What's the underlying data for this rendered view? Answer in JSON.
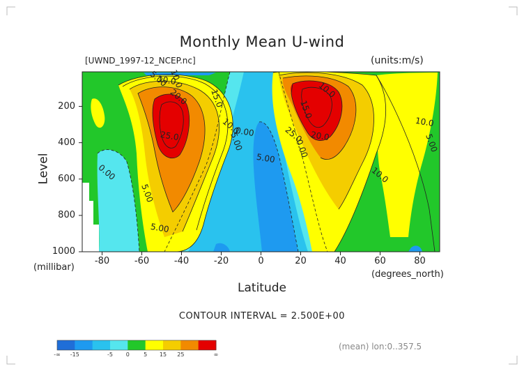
{
  "title": "Monthly Mean U-wind",
  "source_file": "[UWND_1997-12_NCEP.nc]",
  "units": "(units:m/s)",
  "ylabel": "Level",
  "yunits": "(millibar)",
  "xlabel": "Latitude",
  "xunits": "(degrees_north)",
  "contour_interval": "CONTOUR INTERVAL = 2.500E+00",
  "mean_note": "(mean) lon:0..357.5",
  "chart_data": {
    "type": "heatmap",
    "title": "Monthly Mean U-wind",
    "xlabel": "Latitude",
    "ylabel": "Level",
    "x_ticks": [
      "-80",
      "-60",
      "-40",
      "-20",
      "0",
      "20",
      "40",
      "60",
      "80"
    ],
    "y_ticks": [
      "200",
      "400",
      "600",
      "800",
      "1000"
    ],
    "xlim": [
      -90,
      90
    ],
    "ylim": [
      1000,
      10
    ],
    "units": "m/s",
    "contour_interval": 2.5,
    "contour_labels": [
      "10.0",
      "20.0",
      "15.0",
      "25.0",
      "10.0",
      "5.00",
      "0.00",
      "0.00",
      "5.00",
      "5.00",
      "10.0",
      "15.0",
      "20.0",
      "25.0",
      "0.00",
      "5.00",
      "10.0",
      "5.00",
      "10.0",
      "5.00",
      "10.0"
    ],
    "jets": [
      {
        "lat": -47,
        "level": 250,
        "max_value": 27.5
      },
      {
        "lat": 30,
        "level": 180,
        "max_value": 27.5
      }
    ],
    "colorbar": {
      "labels": [
        "-∞",
        "-15",
        "-5",
        "0",
        "5",
        "15",
        "25",
        "∞"
      ],
      "colors": [
        "#1f6ed8",
        "#1e9af0",
        "#2ac2ee",
        "#55e6ee",
        "#22c72a",
        "#ffff00",
        "#f4cd00",
        "#f28a00",
        "#e40000"
      ]
    }
  }
}
